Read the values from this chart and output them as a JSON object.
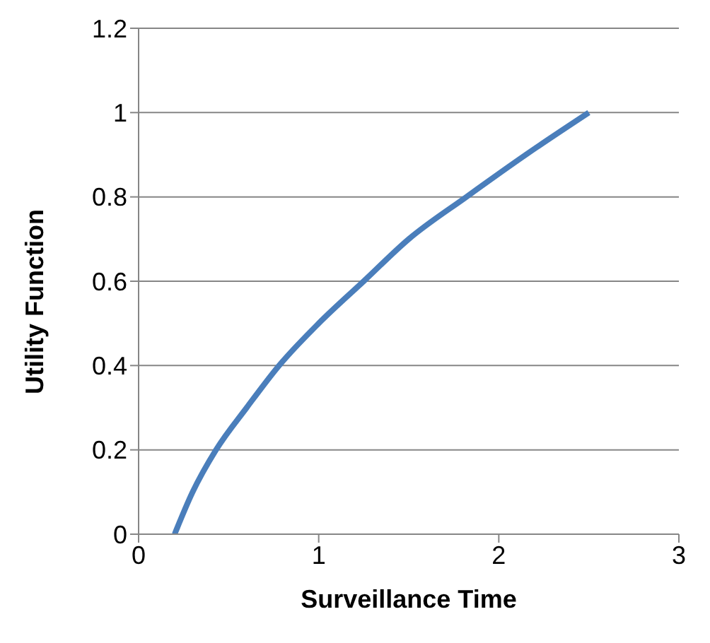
{
  "chart_data": {
    "type": "line",
    "xlabel": "Surveillance Time",
    "ylabel": "Utility Function",
    "x": [
      0.2,
      0.3,
      0.43,
      0.6,
      0.78,
      1.0,
      1.25,
      1.5,
      1.82,
      2.15,
      2.5
    ],
    "series": [
      {
        "color": "#4a7ebb",
        "values": [
          0,
          0.1,
          0.2,
          0.3,
          0.4,
          0.5,
          0.6,
          0.7,
          0.8,
          0.9,
          1.0
        ]
      }
    ],
    "xlim": [
      0,
      3
    ],
    "xticks": [
      0,
      1,
      2,
      3
    ],
    "ylim": [
      0,
      1.2
    ],
    "yticks": [
      0,
      0.2,
      0.4,
      0.6,
      0.8,
      1,
      1.2
    ],
    "grid": "y",
    "marker": "none",
    "line_style": "solid"
  }
}
